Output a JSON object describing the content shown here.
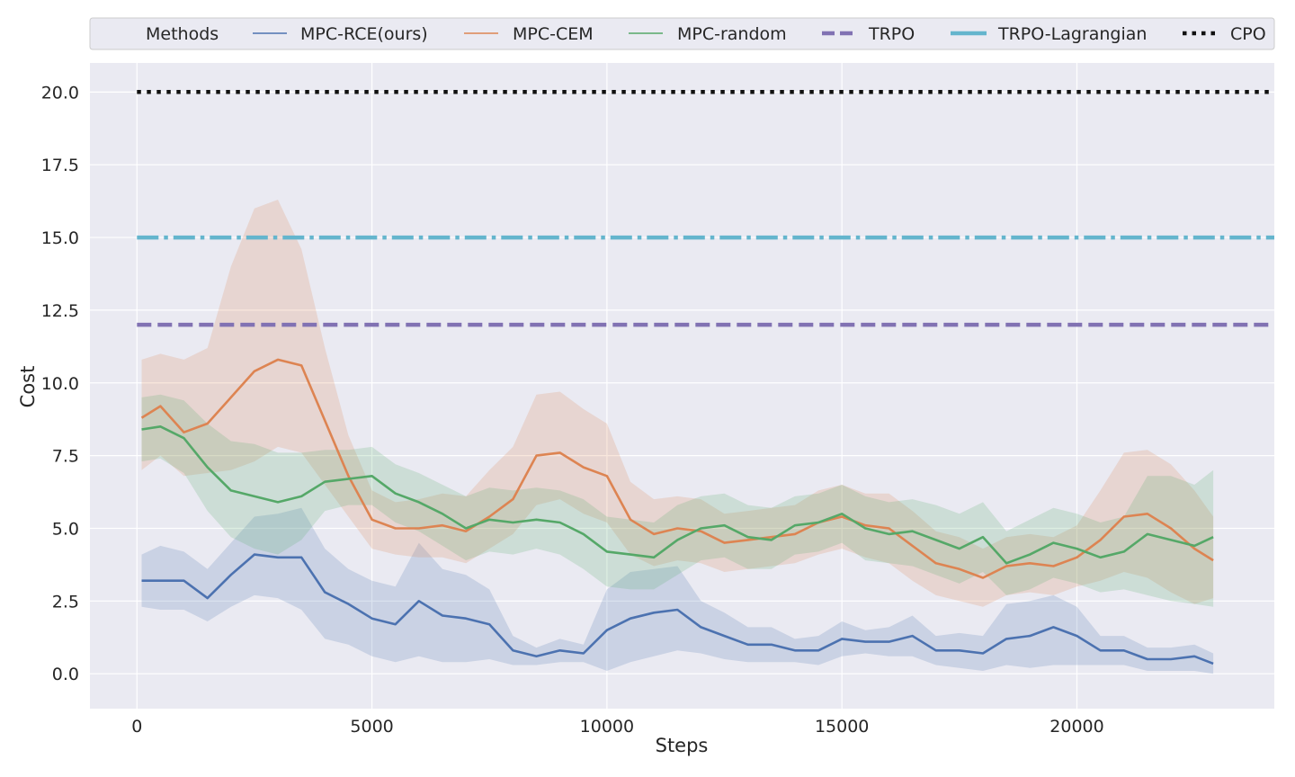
{
  "chart_data": {
    "type": "line",
    "title": "",
    "xlabel": "Steps",
    "ylabel": "Cost",
    "xlim": [
      -1000,
      24200
    ],
    "ylim": [
      -1.2,
      21.0
    ],
    "xticks": [
      0,
      5000,
      10000,
      15000,
      20000
    ],
    "yticks": [
      0.0,
      2.5,
      5.0,
      7.5,
      10.0,
      12.5,
      15.0,
      17.5,
      20.0
    ],
    "xtick_labels": [
      "0",
      "5000",
      "10000",
      "15000",
      "20000"
    ],
    "ytick_labels": [
      "0.0",
      "2.5",
      "5.0",
      "7.5",
      "10.0",
      "12.5",
      "15.0",
      "17.5",
      "20.0"
    ],
    "grid": true,
    "legend": {
      "placement": "top",
      "title": "Methods",
      "labels": [
        "MPC-RCE(ours)",
        "MPC-CEM",
        "MPC-random",
        "TRPO",
        "TRPO-Lagrangian",
        "CPO"
      ]
    },
    "series": [
      {
        "name": "MPC-RCE(ours)",
        "color": "#4c72b0",
        "style": "solid",
        "x": [
          100,
          500,
          1000,
          1500,
          2000,
          2500,
          3000,
          3500,
          4000,
          4500,
          5000,
          5500,
          6000,
          6500,
          7000,
          7500,
          8000,
          8500,
          9000,
          9500,
          10000,
          10500,
          11000,
          11500,
          12000,
          12500,
          13000,
          13500,
          14000,
          14500,
          15000,
          15500,
          16000,
          16500,
          17000,
          17500,
          18000,
          18500,
          19000,
          19500,
          20000,
          20500,
          21000,
          21500,
          22000,
          22500,
          22900
        ],
        "y": [
          3.2,
          3.2,
          3.2,
          2.6,
          3.4,
          4.1,
          4.0,
          4.0,
          2.8,
          2.4,
          1.9,
          1.7,
          2.5,
          2.0,
          1.9,
          1.7,
          0.8,
          0.6,
          0.8,
          0.7,
          1.5,
          1.9,
          2.1,
          2.2,
          1.6,
          1.3,
          1.0,
          1.0,
          0.8,
          0.8,
          1.2,
          1.1,
          1.1,
          1.3,
          0.8,
          0.8,
          0.7,
          1.2,
          1.3,
          1.6,
          1.3,
          0.8,
          0.8,
          0.5,
          0.5,
          0.6,
          0.35
        ],
        "lower": [
          2.3,
          2.2,
          2.2,
          1.8,
          2.3,
          2.7,
          2.6,
          2.2,
          1.2,
          1.0,
          0.6,
          0.4,
          0.6,
          0.4,
          0.4,
          0.5,
          0.3,
          0.3,
          0.4,
          0.4,
          0.1,
          0.4,
          0.6,
          0.8,
          0.7,
          0.5,
          0.4,
          0.4,
          0.4,
          0.3,
          0.6,
          0.7,
          0.6,
          0.6,
          0.3,
          0.2,
          0.1,
          0.3,
          0.2,
          0.3,
          0.3,
          0.3,
          0.3,
          0.1,
          0.1,
          0.1,
          0.0
        ],
        "upper": [
          4.1,
          4.4,
          4.2,
          3.6,
          4.5,
          5.4,
          5.5,
          5.7,
          4.3,
          3.6,
          3.2,
          3.0,
          4.5,
          3.6,
          3.4,
          2.9,
          1.3,
          0.9,
          1.2,
          1.0,
          2.9,
          3.5,
          3.6,
          3.7,
          2.5,
          2.1,
          1.6,
          1.6,
          1.2,
          1.3,
          1.8,
          1.5,
          1.6,
          2.0,
          1.3,
          1.4,
          1.3,
          2.4,
          2.5,
          2.7,
          2.3,
          1.3,
          1.3,
          0.9,
          0.9,
          1.0,
          0.7
        ]
      },
      {
        "name": "MPC-CEM",
        "color": "#dd8452",
        "style": "solid",
        "x": [
          100,
          500,
          1000,
          1500,
          2000,
          2500,
          3000,
          3500,
          4000,
          4500,
          5000,
          5500,
          6000,
          6500,
          7000,
          7500,
          8000,
          8500,
          9000,
          9500,
          10000,
          10500,
          11000,
          11500,
          12000,
          12500,
          13000,
          13500,
          14000,
          14500,
          15000,
          15500,
          16000,
          16500,
          17000,
          17500,
          18000,
          18500,
          19000,
          19500,
          20000,
          20500,
          21000,
          21500,
          22000,
          22500,
          22900
        ],
        "y": [
          8.8,
          9.2,
          8.3,
          8.6,
          9.5,
          10.4,
          10.8,
          10.6,
          8.7,
          6.8,
          5.3,
          5.0,
          5.0,
          5.1,
          4.9,
          5.4,
          6.0,
          7.5,
          7.6,
          7.1,
          6.8,
          5.3,
          4.8,
          5.0,
          4.9,
          4.5,
          4.6,
          4.7,
          4.8,
          5.2,
          5.4,
          5.1,
          5.0,
          4.4,
          3.8,
          3.6,
          3.3,
          3.7,
          3.8,
          3.7,
          4.0,
          4.6,
          5.4,
          5.5,
          5.0,
          4.3,
          3.9
        ],
        "lower": [
          7.0,
          7.5,
          6.8,
          6.9,
          7.0,
          7.3,
          7.8,
          7.6,
          6.5,
          5.4,
          4.3,
          4.1,
          4.0,
          4.0,
          3.8,
          4.3,
          4.8,
          5.8,
          6.0,
          5.5,
          5.2,
          4.1,
          3.7,
          3.9,
          3.8,
          3.5,
          3.6,
          3.7,
          3.8,
          4.1,
          4.3,
          4.0,
          3.8,
          3.2,
          2.7,
          2.5,
          2.3,
          2.7,
          2.8,
          2.7,
          3.0,
          3.2,
          3.5,
          3.3,
          2.8,
          2.4,
          2.6
        ],
        "upper": [
          10.8,
          11.0,
          10.8,
          11.2,
          14.0,
          16.0,
          16.3,
          14.6,
          11.2,
          8.2,
          6.3,
          5.9,
          6.0,
          6.2,
          6.1,
          7.0,
          7.8,
          9.6,
          9.7,
          9.1,
          8.6,
          6.6,
          6.0,
          6.1,
          6.0,
          5.5,
          5.6,
          5.7,
          5.8,
          6.3,
          6.5,
          6.2,
          6.2,
          5.6,
          4.9,
          4.7,
          4.3,
          4.7,
          4.8,
          4.7,
          5.1,
          6.3,
          7.6,
          7.7,
          7.2,
          6.3,
          5.4
        ]
      },
      {
        "name": "MPC-random",
        "color": "#55a868",
        "style": "solid",
        "x": [
          100,
          500,
          1000,
          1500,
          2000,
          2500,
          3000,
          3500,
          4000,
          4500,
          5000,
          5500,
          6000,
          6500,
          7000,
          7500,
          8000,
          8500,
          9000,
          9500,
          10000,
          10500,
          11000,
          11500,
          12000,
          12500,
          13000,
          13500,
          14000,
          14500,
          15000,
          15500,
          16000,
          16500,
          17000,
          17500,
          18000,
          18500,
          19000,
          19500,
          20000,
          20500,
          21000,
          21500,
          22000,
          22500,
          22900
        ],
        "y": [
          8.4,
          8.5,
          8.1,
          7.1,
          6.3,
          6.1,
          5.9,
          6.1,
          6.6,
          6.7,
          6.8,
          6.2,
          5.9,
          5.5,
          5.0,
          5.3,
          5.2,
          5.3,
          5.2,
          4.8,
          4.2,
          4.1,
          4.0,
          4.6,
          5.0,
          5.1,
          4.7,
          4.6,
          5.1,
          5.2,
          5.5,
          5.0,
          4.8,
          4.9,
          4.6,
          4.3,
          4.7,
          3.8,
          4.1,
          4.5,
          4.3,
          4.0,
          4.2,
          4.8,
          4.6,
          4.4,
          4.7
        ],
        "lower": [
          7.3,
          7.4,
          6.9,
          5.6,
          4.7,
          4.3,
          4.1,
          4.6,
          5.6,
          5.8,
          5.8,
          5.2,
          4.9,
          4.4,
          3.9,
          4.2,
          4.1,
          4.3,
          4.1,
          3.6,
          3.0,
          2.9,
          2.9,
          3.4,
          3.9,
          4.0,
          3.6,
          3.6,
          4.1,
          4.2,
          4.5,
          3.9,
          3.8,
          3.7,
          3.4,
          3.1,
          3.5,
          2.7,
          2.9,
          3.3,
          3.1,
          2.8,
          2.9,
          2.7,
          2.5,
          2.4,
          2.3
        ],
        "upper": [
          9.5,
          9.6,
          9.4,
          8.6,
          8.0,
          7.9,
          7.6,
          7.6,
          7.7,
          7.7,
          7.8,
          7.2,
          6.9,
          6.5,
          6.1,
          6.4,
          6.3,
          6.4,
          6.3,
          6.0,
          5.4,
          5.3,
          5.2,
          5.8,
          6.1,
          6.2,
          5.8,
          5.7,
          6.1,
          6.2,
          6.5,
          6.1,
          5.9,
          6.0,
          5.8,
          5.5,
          5.9,
          4.9,
          5.3,
          5.7,
          5.5,
          5.2,
          5.4,
          6.8,
          6.8,
          6.5,
          7.0
        ]
      },
      {
        "name": "TRPO",
        "color": "#8172b3",
        "style": "dashed",
        "x": [
          0,
          24200
        ],
        "y": [
          12.0,
          12.0
        ]
      },
      {
        "name": "TRPO-Lagrangian",
        "color": "#64b5cd",
        "style": "dashdot",
        "x": [
          0,
          24200
        ],
        "y": [
          15.0,
          15.0
        ]
      },
      {
        "name": "CPO",
        "color": "#111111",
        "style": "dotted",
        "x": [
          0,
          24200
        ],
        "y": [
          20.0,
          20.0
        ]
      }
    ]
  }
}
